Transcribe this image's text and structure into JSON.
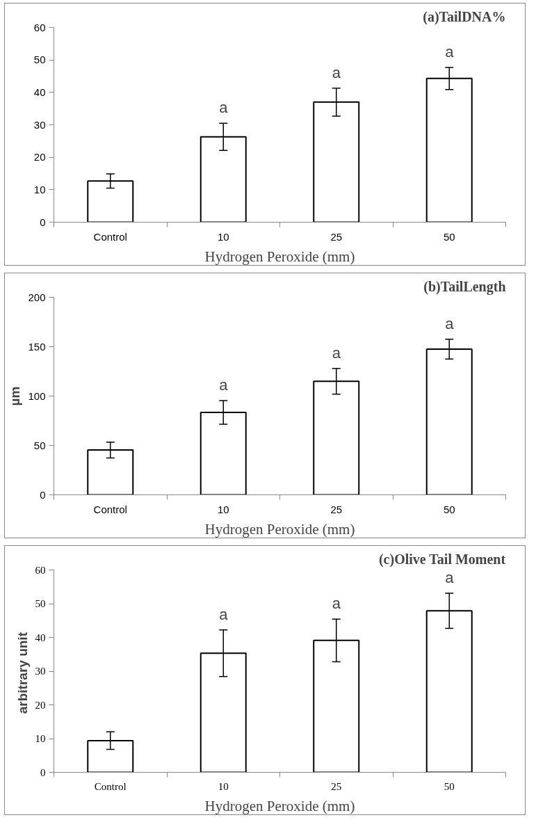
{
  "chart_data": [
    {
      "type": "bar",
      "title": "(a)TailDNA%",
      "xlabel": "Hydrogen Peroxide (mm)",
      "categories": [
        "Control",
        "10",
        "25",
        "50"
      ],
      "values": [
        12.7,
        26.3,
        37.0,
        44.3
      ],
      "errors": [
        2.2,
        4.2,
        4.3,
        3.4
      ],
      "color": "#ffffff",
      "ylim": [
        0,
        60
      ],
      "yticks": [
        0,
        10,
        20,
        30,
        40,
        50,
        60
      ],
      "annotations": [
        "a",
        "a",
        "a"
      ]
    },
    {
      "type": "bar",
      "title": "(b)TailLength",
      "xlabel": "Hydrogen Peroxide (mm)",
      "ylabel": "µm",
      "categories": [
        "Control",
        "10",
        "25",
        "50"
      ],
      "values": [
        45.4,
        83.4,
        115,
        147.5
      ],
      "errors": [
        8,
        12,
        13,
        10
      ],
      "color": "#ffffff",
      "ylim": [
        0,
        200
      ],
      "yticks": [
        0,
        50,
        100,
        150,
        200
      ],
      "annotations": [
        "a",
        "a",
        "a"
      ]
    },
    {
      "type": "bar",
      "title": "(c)Olive Tail Moment",
      "xlabel": "Hydrogen Peroxide (mm)",
      "ylabel": "arbitrary  unit",
      "categories": [
        "Control",
        "10",
        "25",
        "50"
      ],
      "values": [
        9.4,
        35.3,
        39.1,
        47.9
      ],
      "errors": [
        2.6,
        6.9,
        6.3,
        5.2
      ],
      "color": "#ffffff",
      "ylim": [
        0,
        60
      ],
      "yticks": [
        0,
        10,
        20,
        30,
        40,
        50,
        60
      ],
      "annotations": [
        "a",
        "a",
        "a"
      ]
    }
  ]
}
